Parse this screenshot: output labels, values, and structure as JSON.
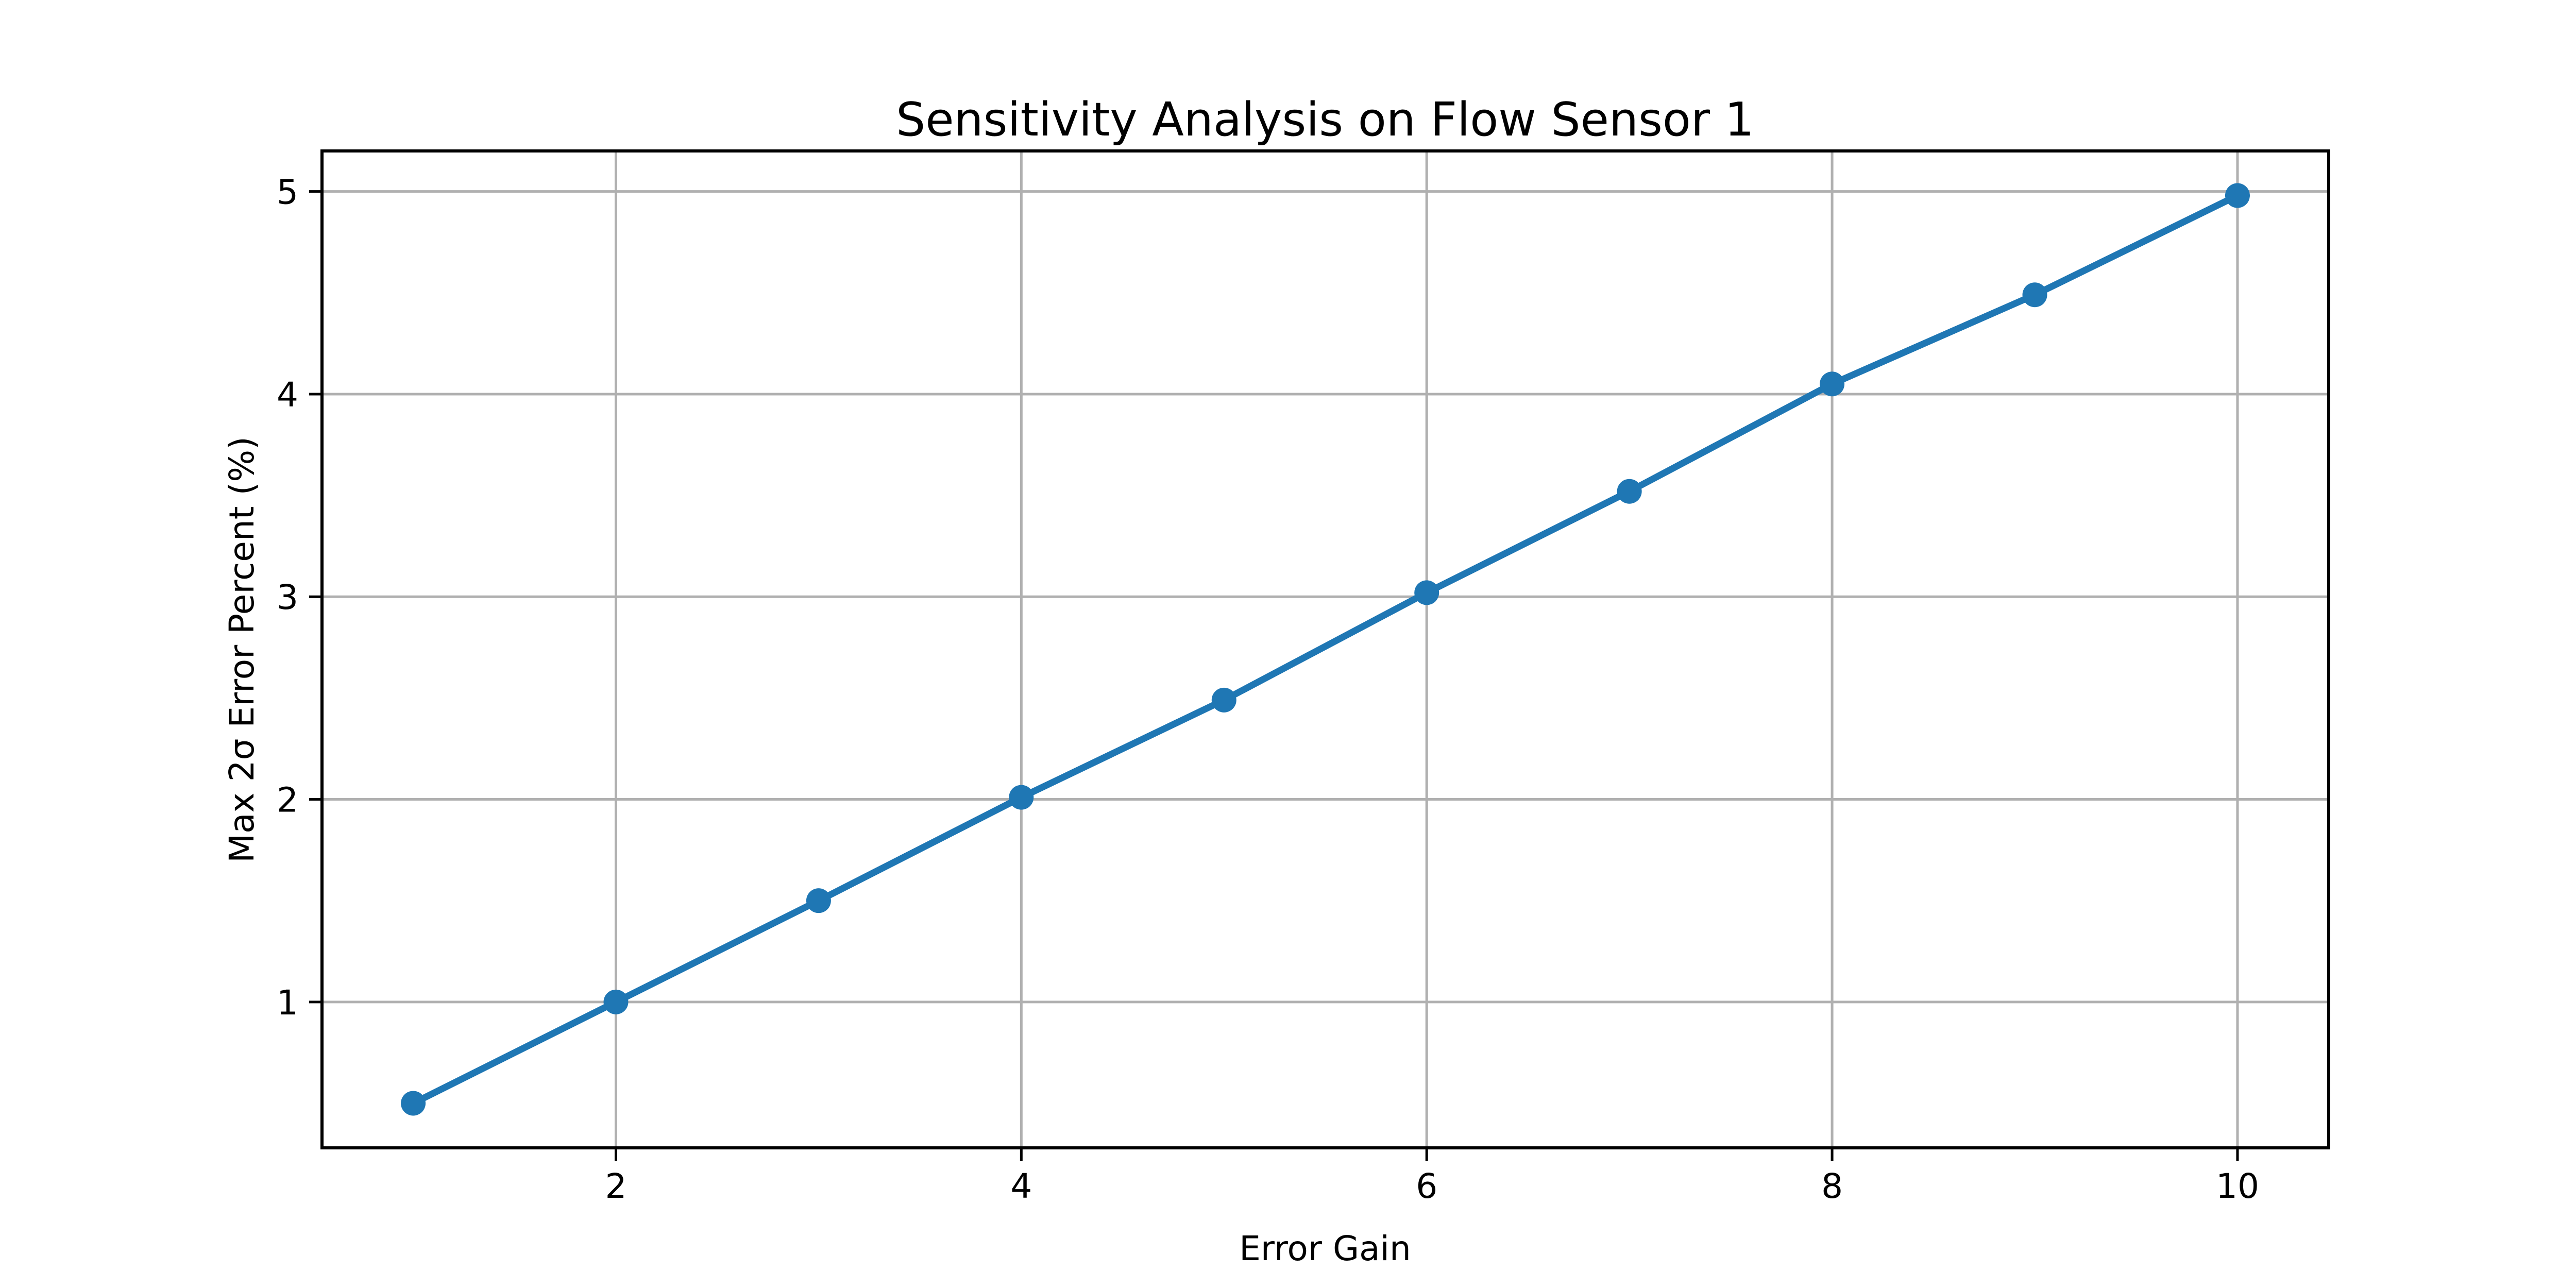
{
  "figure": {
    "background": "#ffffff"
  },
  "chart_data": {
    "type": "line",
    "title": "Sensitivity Analysis on Flow Sensor 1",
    "xlabel": "Error Gain",
    "ylabel": "Max 2σ Error Percent (%)",
    "x": [
      1,
      2,
      3,
      4,
      5,
      6,
      7,
      8,
      9,
      10
    ],
    "y": [
      0.5,
      1.0,
      1.5,
      2.01,
      2.49,
      3.02,
      3.52,
      4.05,
      4.49,
      4.98
    ],
    "series_name": "Max 2σ Error Percent",
    "x_tick_labels": [
      "2",
      "4",
      "6",
      "8",
      "10"
    ],
    "x_tick_values": [
      2,
      4,
      6,
      8,
      10
    ],
    "y_tick_labels": [
      "1",
      "2",
      "3",
      "4",
      "5"
    ],
    "y_tick_values": [
      1,
      2,
      3,
      4,
      5
    ],
    "xlim": [
      0.55,
      10.45
    ],
    "ylim": [
      0.28,
      5.2
    ],
    "grid": true,
    "legend": "none",
    "line_color": "#1f77b4",
    "marker": "circle",
    "grid_color": "#b0b0b0",
    "axis_color": "#000000",
    "tick_color": "#000000"
  }
}
